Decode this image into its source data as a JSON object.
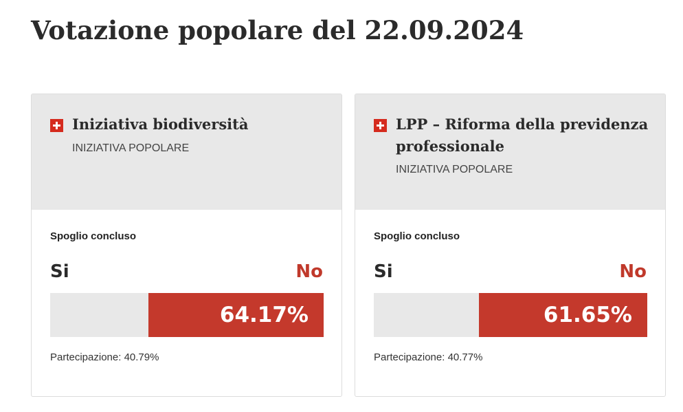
{
  "page": {
    "title": "Votazione popolare del 22.09.2024"
  },
  "votes": [
    {
      "title": "Iniziativa biodiversità",
      "type": "INIZIATIVA POPOLARE",
      "status": "Spoglio concluso",
      "yes_label": "Si",
      "no_label": "No",
      "no_percent": 64.17,
      "no_percent_text": "64.17%",
      "turnout_text": "Partecipazione: 40.79%",
      "flag_icon": "swiss-flag-icon"
    },
    {
      "title": "LPP – Riforma della previdenza professionale",
      "type": "INIZIATIVA POPOLARE",
      "status": "Spoglio concluso",
      "yes_label": "Si",
      "no_label": "No",
      "no_percent": 61.65,
      "no_percent_text": "61.65%",
      "turnout_text": "Partecipazione: 40.77%",
      "flag_icon": "swiss-flag-icon"
    }
  ],
  "colors": {
    "no": "#c4392c",
    "bar_bg": "#e8e8e8",
    "header_bg": "#e8e8e8",
    "flag": "#d52b1e"
  }
}
